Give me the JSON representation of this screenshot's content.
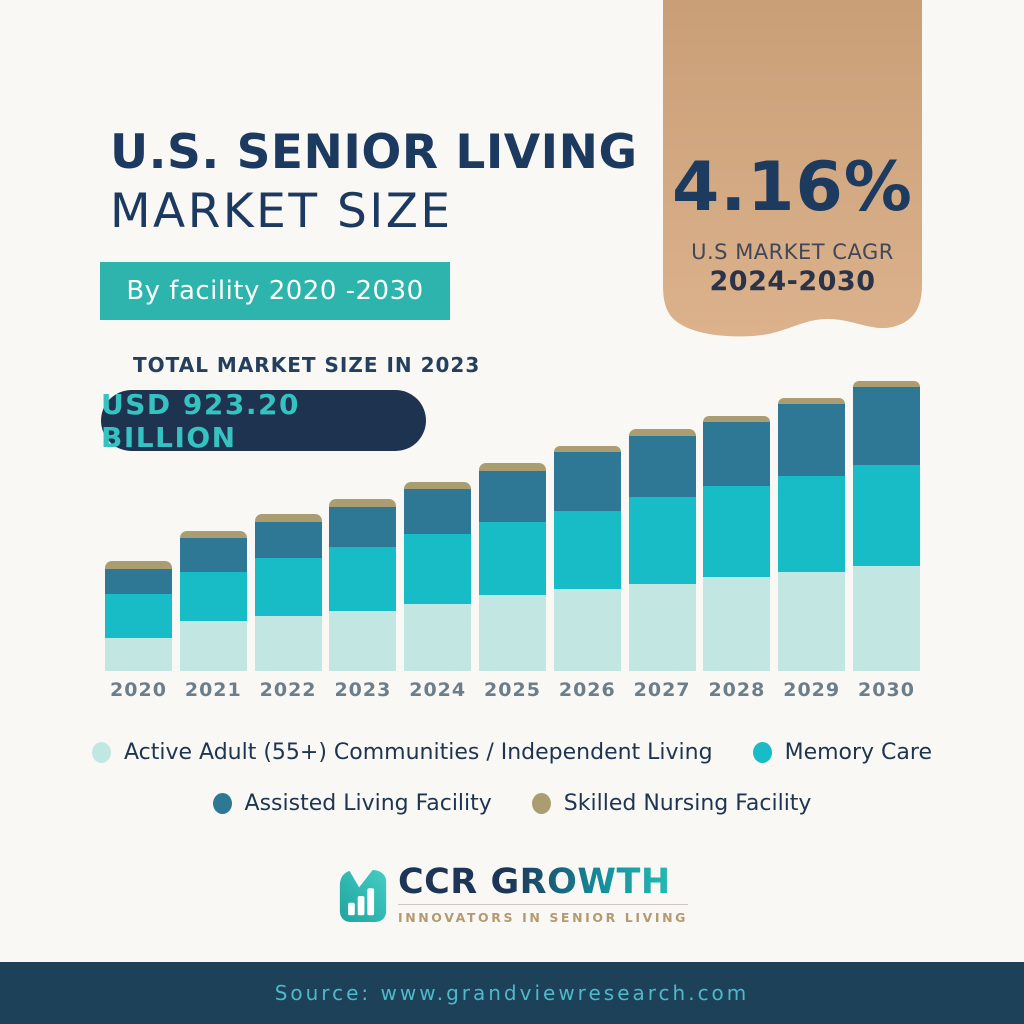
{
  "header": {
    "title_line1": "U.S. SENIOR LIVING",
    "title_line2": "MARKET SIZE",
    "subtitle_banner": "By facility 2020 -2030"
  },
  "cagr_badge": {
    "value": "4.16%",
    "label": "U.S MARKET CAGR",
    "period": "2024-2030"
  },
  "total_market": {
    "label": "TOTAL MARKET SIZE IN 2023",
    "value": "USD 923.20 BILLION"
  },
  "chart_data": {
    "type": "bar",
    "stacked": true,
    "title": "U.S. Senior Living Market Size by facility, 2020-2030",
    "categories": [
      "2020",
      "2021",
      "2022",
      "2023",
      "2024",
      "2025",
      "2026",
      "2027",
      "2028",
      "2029",
      "2030"
    ],
    "unit": "relative segment height in on-screen pixels (no value axis shown in source image)",
    "anchor_note": "Total market size in 2023 = USD 923.20 billion",
    "grid": false,
    "legend_position": "bottom",
    "series": [
      {
        "name": "Active Adult (55+) Communities / Independent Living",
        "slug": "active-adult",
        "color": "#c2e7e3",
        "values": [
          33,
          50,
          55,
          60,
          67,
          76,
          82,
          87,
          94,
          99,
          105
        ]
      },
      {
        "name": "Memory Care",
        "slug": "memory-care",
        "color": "#17bcc6",
        "values": [
          44,
          49,
          58,
          64,
          70,
          73,
          78,
          87,
          91,
          96,
          101
        ]
      },
      {
        "name": "Assisted Living Facility",
        "slug": "assisted-living",
        "color": "#2e7795",
        "values": [
          25,
          34,
          36,
          40,
          45,
          51,
          59,
          61,
          64,
          72,
          78
        ]
      },
      {
        "name": "Skilled Nursing Facility",
        "slug": "skilled-nursing",
        "color": "#ab9d72",
        "values": [
          8,
          7,
          8,
          8,
          7,
          8,
          6,
          7,
          6,
          6,
          6
        ]
      }
    ]
  },
  "legend": {
    "rows": [
      [
        "active-adult",
        "memory-care"
      ],
      [
        "assisted-living",
        "skilled-nursing"
      ]
    ]
  },
  "logo": {
    "name": "CCR GROWTH",
    "tagline": "INNOVATORS IN SENIOR LIVING"
  },
  "footer": {
    "source": "Source: www.grandviewresearch.com"
  },
  "colors": {
    "background": "#faf8f4",
    "navy_title": "#1c3a60",
    "teal_banner": "#2db4ad",
    "pill_bg": "#1e3350",
    "pill_text": "#36c2c0",
    "badge_gradient_top": "#c89f77",
    "badge_gradient_bottom": "#dcb28c",
    "footer_bg": "#1d4158",
    "footer_text": "#4db9cb",
    "x_label": "#6b7e8c",
    "tagline_gold": "#b49a71"
  }
}
